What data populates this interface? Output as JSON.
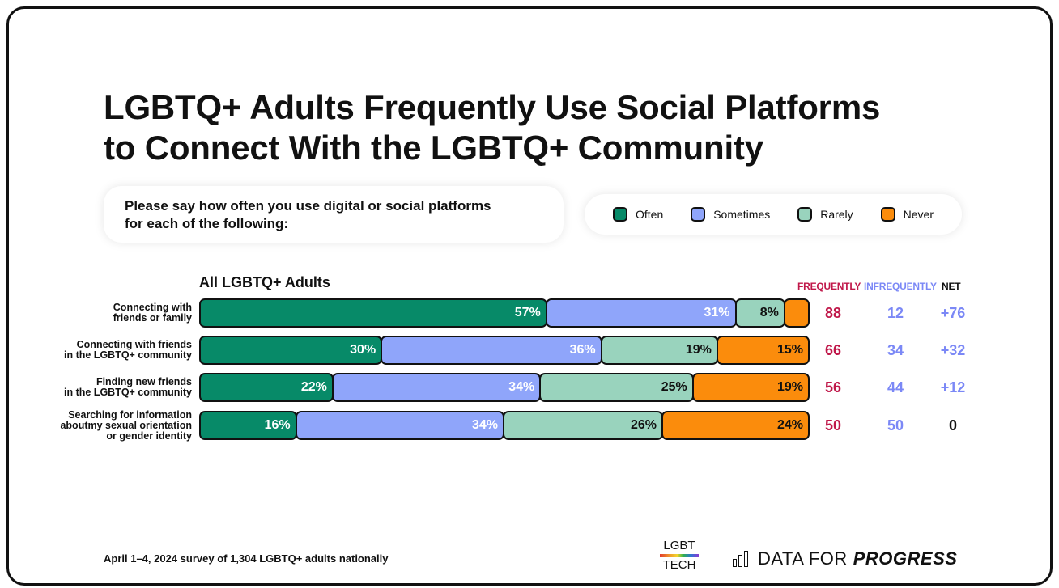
{
  "title_line1": "LGBTQ+ Adults Frequently Use Social Platforms",
  "title_line2": "to Connect With the LGBTQ+ Community",
  "question_line1": "Please say how often you use digital or social platforms",
  "question_line2": "for each of the following:",
  "footer": "April 1–4, 2024 survey of 1,304 LGBTQ+ adults nationally",
  "logos": {
    "lgbt_top": "LGBT",
    "lgbt_bottom": "TECH",
    "dfp_main": "DATA FOR",
    "dfp_emph": "PROGRESS"
  },
  "columns": {
    "frequently": "FREQUENTLY",
    "infrequently": "INFREQUENTLY",
    "net": "NET"
  },
  "colors": {
    "often": "#078a68",
    "sometimes": "#8fa5fa",
    "rarely": "#99d3bd",
    "never": "#fb8c0c",
    "often_text": "#ffffff",
    "sometimes_text": "#ffffff",
    "rarely_text": "#111111",
    "never_text": "#111111"
  },
  "chart_data": {
    "type": "bar",
    "orientation": "horizontal-stacked",
    "subset_title": "All LGBTQ+ Adults",
    "legend": [
      "Often",
      "Sometimes",
      "Rarely",
      "Never"
    ],
    "legend_position": "top-right",
    "xlim": [
      0,
      100
    ],
    "rows": [
      {
        "label_lines": [
          "Connecting with",
          "friends or family"
        ],
        "values": [
          57,
          31,
          8,
          4
        ],
        "labels": [
          "57%",
          "31%",
          "8%",
          ""
        ],
        "frequently": "88",
        "infrequently": "12",
        "net": "+76"
      },
      {
        "label_lines": [
          "Connecting with friends",
          "in the LGBTQ+ community"
        ],
        "values": [
          30,
          36,
          19,
          15
        ],
        "labels": [
          "30%",
          "36%",
          "19%",
          "15%"
        ],
        "frequently": "66",
        "infrequently": "34",
        "net": "+32"
      },
      {
        "label_lines": [
          "Finding new friends",
          "in the LGBTQ+ community"
        ],
        "values": [
          22,
          34,
          25,
          19
        ],
        "labels": [
          "22%",
          "34%",
          "25%",
          "19%"
        ],
        "frequently": "56",
        "infrequently": "44",
        "net": "+12"
      },
      {
        "label_lines": [
          "Searching for information",
          "aboutmy sexual orientation",
          "or gender identity"
        ],
        "values": [
          16,
          34,
          26,
          24
        ],
        "labels": [
          "16%",
          "34%",
          "26%",
          "24%"
        ],
        "frequently": "50",
        "infrequently": "50",
        "net": "0"
      }
    ]
  }
}
